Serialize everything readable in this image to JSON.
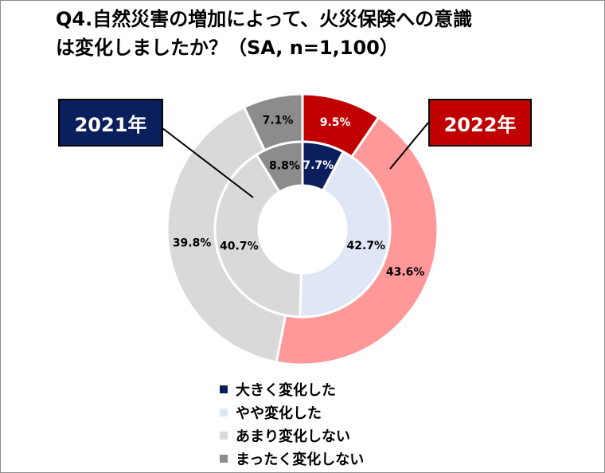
{
  "title": {
    "line1": "Q4.自然災害の増加によって、火災保険への意識",
    "line2": "は変化しましたか？（SA, n=1,100）"
  },
  "boxes": {
    "y2021": "2021年",
    "y2022": "2022年"
  },
  "legend": [
    {
      "label": "大きく変化した",
      "color": "#0b1f5c"
    },
    {
      "label": "やや変化した",
      "color": "#dfe6f5"
    },
    {
      "label": "あまり変化しない",
      "color": "#d9d9d9"
    },
    {
      "label": "まったく変化しない",
      "color": "#8c8c8c"
    }
  ],
  "chart_data": {
    "type": "pie",
    "variant": "nested-donut",
    "categories": [
      "大きく変化した",
      "やや変化した",
      "あまり変化しない",
      "まったく変化しない"
    ],
    "series": [
      {
        "name": "2022年",
        "ring": "outer",
        "values": [
          9.5,
          43.6,
          39.8,
          7.1
        ],
        "colors": [
          "#c00000",
          "#ff9999",
          "#d9d9d9",
          "#8c8c8c"
        ],
        "labels": [
          "9.5%",
          "43.6%",
          "39.8%",
          "7.1%"
        ]
      },
      {
        "name": "2021年",
        "ring": "inner",
        "values": [
          7.7,
          42.7,
          40.7,
          8.8
        ],
        "colors": [
          "#0b1f5c",
          "#dfe6f5",
          "#d9d9d9",
          "#8c8c8c"
        ],
        "labels": [
          "7.7%",
          "42.7%",
          "40.7%",
          "8.8%"
        ]
      }
    ]
  }
}
